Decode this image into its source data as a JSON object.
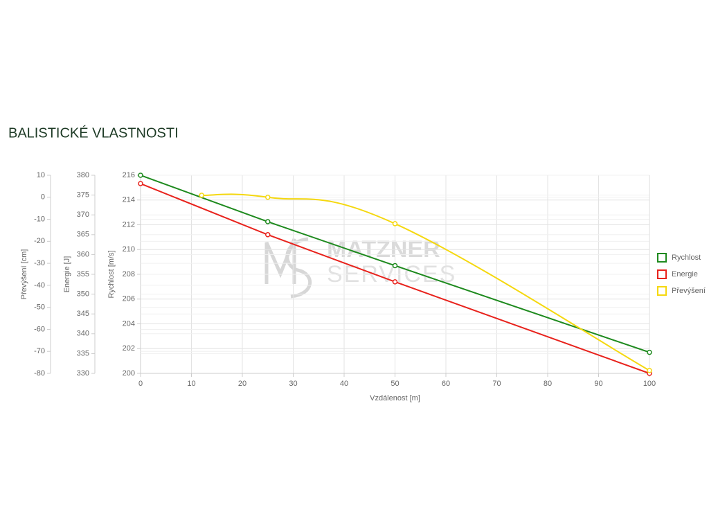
{
  "chart_data": {
    "type": "line",
    "title": "BALISTICKÉ VLASTNOSTI",
    "xlabel": "Vzdálenost [m]",
    "ylabel": "Rychlost [m/s]",
    "y2label": "Energie [J]",
    "y3label": "Převýšení [cm]",
    "watermark": [
      "MATZNER",
      "SERVICES"
    ],
    "xlim": [
      0,
      100
    ],
    "xticks": [
      0,
      10,
      20,
      30,
      40,
      50,
      60,
      70,
      80,
      90,
      100
    ],
    "ylim": [
      200,
      216
    ],
    "yticks": [
      200,
      202,
      204,
      206,
      208,
      210,
      212,
      214,
      216
    ],
    "y2lim": [
      330,
      380
    ],
    "y2ticks": [
      330,
      335,
      340,
      345,
      350,
      355,
      360,
      365,
      370,
      375,
      380
    ],
    "y3lim": [
      -80,
      10
    ],
    "y3ticks": [
      -80,
      -70,
      -60,
      -50,
      -40,
      -30,
      -20,
      -10,
      0,
      10
    ],
    "grid": true,
    "legend": "right",
    "series": [
      {
        "name": "Rychlost",
        "color": "#1e8a1e",
        "axis": "y",
        "smooth": false,
        "x": [
          0,
          25,
          50,
          100
        ],
        "values": [
          216,
          212.25,
          208.7,
          201.7
        ]
      },
      {
        "name": "Energie",
        "color": "#e8221c",
        "axis": "y2",
        "smooth": false,
        "x": [
          0,
          25,
          50,
          100
        ],
        "values": [
          377.9,
          365,
          353.1,
          330
        ]
      },
      {
        "name": "Převýšení",
        "color": "#f5d80f",
        "axis": "y3",
        "smooth": true,
        "x": [
          12,
          25,
          50,
          100
        ],
        "values": [
          0.9,
          0,
          -12,
          -78.7
        ]
      }
    ]
  }
}
